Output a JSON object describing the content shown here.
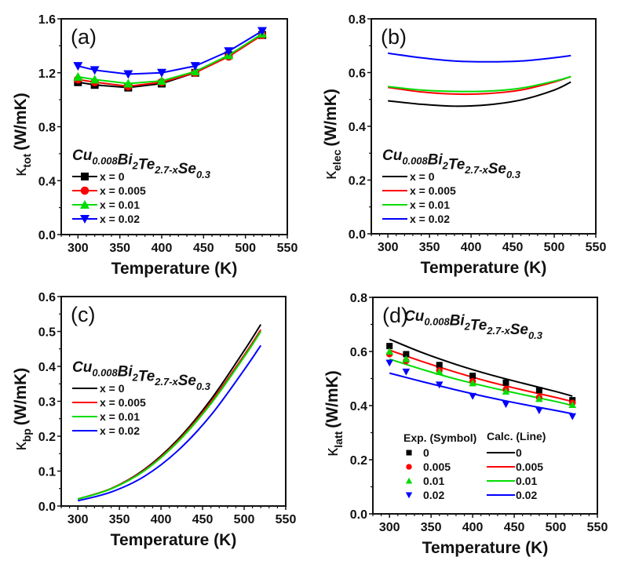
{
  "figure": {
    "formula": {
      "base": [
        "Cu",
        "Bi",
        "Te",
        "Se"
      ],
      "subs": [
        "0.008",
        "2",
        "2.7-x",
        "0.3"
      ]
    },
    "ylabel_unit": "(W/mK)",
    "kappa": "κ"
  },
  "colors": {
    "x = 0": "#000000",
    "x = 0.005": "#ff0000",
    "x = 0.01": "#00dd00",
    "x = 0.02": "#0000ff"
  },
  "chart_data": [
    {
      "panel": "(a)",
      "type": "line",
      "xlabel": "Temperature (K)",
      "ylabel_sub": "tot",
      "xlim": [
        280,
        550
      ],
      "ylim": [
        0.0,
        1.6
      ],
      "xticks": [
        300,
        350,
        400,
        450,
        500,
        550
      ],
      "yticks": [
        0.0,
        0.4,
        0.8,
        1.2,
        1.6
      ],
      "ytick_labels": [
        "0.0",
        "0.4",
        "0.8",
        "1.2",
        "1.6"
      ],
      "legend": {
        "placement": "center-left",
        "entries": [
          "x = 0",
          "x = 0.005",
          "x = 0.01",
          "x = 0.02"
        ]
      },
      "markers": true,
      "x": [
        300,
        320,
        360,
        400,
        440,
        480,
        520
      ],
      "series": [
        {
          "name": "x = 0",
          "marker": "square",
          "values": [
            1.13,
            1.11,
            1.09,
            1.12,
            1.2,
            1.33,
            1.48
          ]
        },
        {
          "name": "x = 0.005",
          "marker": "circle",
          "values": [
            1.15,
            1.13,
            1.1,
            1.13,
            1.2,
            1.32,
            1.48
          ]
        },
        {
          "name": "x = 0.01",
          "marker": "triangle-up",
          "values": [
            1.17,
            1.15,
            1.12,
            1.14,
            1.21,
            1.33,
            1.49
          ]
        },
        {
          "name": "x = 0.02",
          "marker": "triangle-down",
          "values": [
            1.25,
            1.22,
            1.19,
            1.2,
            1.25,
            1.36,
            1.51
          ]
        }
      ]
    },
    {
      "panel": "(b)",
      "type": "line",
      "xlabel": "Temperature (K)",
      "ylabel_sub": "elec",
      "xlim": [
        280,
        550
      ],
      "ylim": [
        0.0,
        0.8
      ],
      "xticks": [
        300,
        350,
        400,
        450,
        500,
        550
      ],
      "yticks": [
        0.0,
        0.2,
        0.4,
        0.6,
        0.8
      ],
      "ytick_labels": [
        "0.0",
        "0.2",
        "0.4",
        "0.6",
        "0.8"
      ],
      "legend": {
        "placement": "center-left",
        "entries": [
          "x = 0",
          "x = 0.005",
          "x = 0.01",
          "x = 0.02"
        ]
      },
      "markers": false,
      "x": [
        300,
        340,
        380,
        420,
        460,
        500,
        520
      ],
      "series": [
        {
          "name": "x = 0",
          "values": [
            0.495,
            0.482,
            0.475,
            0.48,
            0.498,
            0.535,
            0.565
          ]
        },
        {
          "name": "x = 0.005",
          "values": [
            0.545,
            0.528,
            0.52,
            0.522,
            0.535,
            0.565,
            0.585
          ]
        },
        {
          "name": "x = 0.01",
          "values": [
            0.548,
            0.535,
            0.53,
            0.531,
            0.542,
            0.568,
            0.585
          ]
        },
        {
          "name": "x = 0.02",
          "values": [
            0.672,
            0.655,
            0.643,
            0.64,
            0.643,
            0.655,
            0.663
          ]
        }
      ]
    },
    {
      "panel": "(c)",
      "type": "line",
      "xlabel": "Temperature (K)",
      "ylabel_sub": "bp",
      "xlim": [
        280,
        550
      ],
      "ylim": [
        0.0,
        0.6
      ],
      "xticks": [
        300,
        350,
        400,
        450,
        500,
        550
      ],
      "yticks": [
        0.0,
        0.1,
        0.2,
        0.3,
        0.4,
        0.5,
        0.6
      ],
      "ytick_labels": [
        "0.0",
        "0.1",
        "0.2",
        "0.3",
        "0.4",
        "0.5",
        "0.6"
      ],
      "legend": {
        "placement": "upper-left",
        "entries": [
          "x = 0",
          "x = 0.005",
          "x = 0.01",
          "x = 0.02"
        ]
      },
      "markers": false,
      "x": [
        300,
        340,
        380,
        420,
        460,
        500,
        520
      ],
      "series": [
        {
          "name": "x = 0",
          "values": [
            0.02,
            0.05,
            0.105,
            0.19,
            0.305,
            0.445,
            0.52
          ]
        },
        {
          "name": "x = 0.005",
          "values": [
            0.02,
            0.05,
            0.103,
            0.186,
            0.298,
            0.432,
            0.505
          ]
        },
        {
          "name": "x = 0.01",
          "values": [
            0.02,
            0.049,
            0.101,
            0.183,
            0.293,
            0.427,
            0.5
          ]
        },
        {
          "name": "x = 0.02",
          "values": [
            0.015,
            0.04,
            0.085,
            0.158,
            0.26,
            0.39,
            0.46
          ]
        }
      ]
    },
    {
      "panel": "(d)",
      "type": "line",
      "xlabel": "Temperature (K)",
      "ylabel_sub": "latt",
      "xlim": [
        280,
        550
      ],
      "ylim": [
        0.0,
        0.8
      ],
      "xticks": [
        300,
        350,
        400,
        450,
        500,
        550
      ],
      "yticks": [
        0.0,
        0.2,
        0.4,
        0.6,
        0.8
      ],
      "ytick_labels": [
        "0.0",
        "0.2",
        "0.4",
        "0.6",
        "0.8"
      ],
      "legend": {
        "placement": "lower-center",
        "exp_title": "Exp. (Symbol)",
        "calc_title": "Calc. (Line)",
        "entries": [
          "0",
          "0.005",
          "0.01",
          "0.02"
        ]
      },
      "x": [
        300,
        320,
        360,
        400,
        440,
        480,
        520
      ],
      "symbols": [
        {
          "name": "x = 0",
          "marker": "square",
          "values": [
            0.62,
            0.59,
            0.55,
            0.51,
            0.485,
            0.457,
            0.42
          ]
        },
        {
          "name": "x = 0.005",
          "marker": "circle",
          "values": [
            0.59,
            0.565,
            0.53,
            0.49,
            0.46,
            0.43,
            0.41
          ]
        },
        {
          "name": "x = 0.01",
          "marker": "triangle-up",
          "values": [
            0.6,
            0.572,
            0.525,
            0.483,
            0.452,
            0.425,
            0.403
          ]
        },
        {
          "name": "x = 0.02",
          "marker": "triangle-down",
          "values": [
            0.558,
            0.525,
            0.477,
            0.435,
            0.405,
            0.382,
            0.36
          ]
        }
      ],
      "lines_x": [
        300,
        340,
        380,
        420,
        460,
        500,
        520
      ],
      "lines": [
        {
          "name": "x = 0",
          "values": [
            0.645,
            0.595,
            0.552,
            0.515,
            0.483,
            0.452,
            0.435
          ]
        },
        {
          "name": "x = 0.005",
          "values": [
            0.605,
            0.562,
            0.523,
            0.488,
            0.458,
            0.43,
            0.415
          ]
        },
        {
          "name": "x = 0.01",
          "values": [
            0.572,
            0.533,
            0.498,
            0.468,
            0.441,
            0.415,
            0.4
          ]
        },
        {
          "name": "x = 0.02",
          "values": [
            0.52,
            0.488,
            0.458,
            0.43,
            0.405,
            0.382,
            0.37
          ]
        }
      ]
    }
  ]
}
